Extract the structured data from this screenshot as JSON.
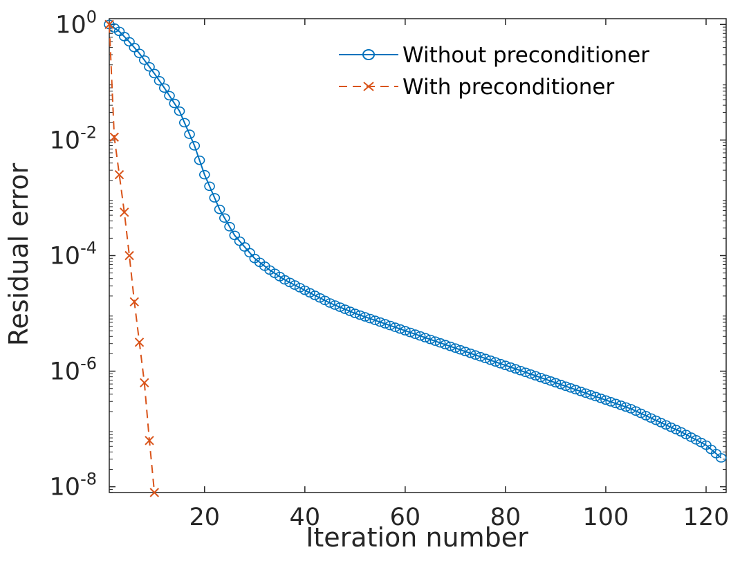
{
  "chart_data": {
    "type": "line",
    "title": "",
    "xlabel": "Iteration number",
    "ylabel": "Residual error",
    "xlim": [
      1,
      124
    ],
    "ylim_log10": [
      -8.1,
      0.1
    ],
    "y_scale": "log",
    "x_ticks": [
      20,
      40,
      60,
      80,
      100,
      120
    ],
    "x_tick_labels": [
      "20",
      "40",
      "60",
      "80",
      "100",
      "120"
    ],
    "y_ticks_log10": [
      0,
      -2,
      -4,
      -6,
      -8
    ],
    "y_tick_base": "10",
    "y_tick_exponents": [
      "0",
      "-2",
      "-4",
      "-6",
      "-8"
    ],
    "grid": false,
    "legend_position": "top-right",
    "colors": {
      "without": "#0072BD",
      "with": "#D95319",
      "axis": "#262626"
    },
    "series": [
      {
        "name": "Without preconditioner",
        "color": "#0072BD",
        "marker": "circle",
        "line": "solid",
        "x_range": [
          1,
          123
        ],
        "log10_anchors": [
          [
            1,
            0
          ],
          [
            3,
            -0.12
          ],
          [
            5,
            -0.3
          ],
          [
            7,
            -0.5
          ],
          [
            10,
            -0.85
          ],
          [
            12,
            -1.1
          ],
          [
            15,
            -1.5
          ],
          [
            18,
            -2.1
          ],
          [
            20,
            -2.6
          ],
          [
            23,
            -3.2
          ],
          [
            26,
            -3.65
          ],
          [
            28,
            -3.85
          ],
          [
            30,
            -4.05
          ],
          [
            33,
            -4.25
          ],
          [
            36,
            -4.42
          ],
          [
            40,
            -4.6
          ],
          [
            45,
            -4.82
          ],
          [
            50,
            -5.0
          ],
          [
            55,
            -5.15
          ],
          [
            60,
            -5.3
          ],
          [
            65,
            -5.45
          ],
          [
            70,
            -5.6
          ],
          [
            75,
            -5.75
          ],
          [
            80,
            -5.9
          ],
          [
            85,
            -6.05
          ],
          [
            90,
            -6.2
          ],
          [
            95,
            -6.35
          ],
          [
            100,
            -6.5
          ],
          [
            105,
            -6.65
          ],
          [
            110,
            -6.85
          ],
          [
            115,
            -7.05
          ],
          [
            120,
            -7.28
          ],
          [
            123,
            -7.5
          ]
        ]
      },
      {
        "name": "With preconditioner",
        "color": "#D95319",
        "marker": "x",
        "line": "dashed",
        "x": [
          1,
          2,
          3,
          4,
          5,
          6,
          7,
          8,
          9,
          10
        ],
        "log10_values": [
          0,
          -1.95,
          -2.6,
          -3.25,
          -4.0,
          -4.8,
          -5.5,
          -6.2,
          -7.2,
          -8.1
        ]
      }
    ]
  }
}
